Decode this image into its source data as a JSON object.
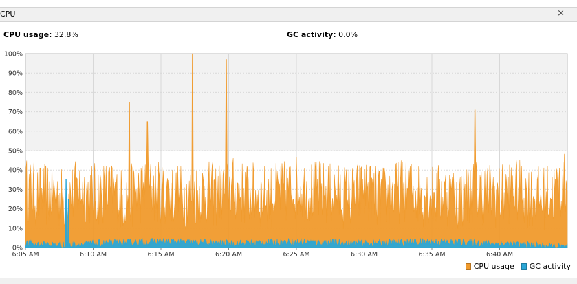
{
  "window": {
    "title": "CPU",
    "close_glyph": "×"
  },
  "status": {
    "cpu_label": "CPU usage:",
    "cpu_value": "32.8%",
    "gc_label": "GC activity:",
    "gc_value": "0.0%"
  },
  "chart_data": {
    "type": "area",
    "title": "",
    "xlabel": "",
    "ylabel": "",
    "ylim": [
      0,
      100
    ],
    "y_ticks": [
      "0%",
      "10%",
      "20%",
      "30%",
      "40%",
      "50%",
      "60%",
      "70%",
      "80%",
      "90%",
      "100%"
    ],
    "x_ticks": [
      "6:05 AM",
      "6:10 AM",
      "6:15 AM",
      "6:20 AM",
      "6:25 AM",
      "6:30 AM",
      "6:35 AM",
      "6:40 AM"
    ],
    "x_range_minutes": [
      "6:05 AM",
      "6:45 AM"
    ],
    "grid": true,
    "legend_position": "bottom-right",
    "series": [
      {
        "name": "CPU usage",
        "color": "#f09a2c",
        "points": [
          [
            "6:05 AM",
            30
          ],
          [
            "6:06 AM",
            26
          ],
          [
            "6:07 AM",
            28
          ],
          [
            "6:08 AM",
            24
          ],
          [
            "6:09 AM",
            30
          ],
          [
            "6:10 AM",
            27
          ],
          [
            "6:11 AM",
            29
          ],
          [
            "6:12 AM",
            25
          ],
          [
            "6:13 AM",
            27
          ],
          [
            "6:14 AM",
            30
          ],
          [
            "6:15 AM",
            28
          ],
          [
            "6:16 AM",
            27
          ],
          [
            "6:17 AM",
            26
          ],
          [
            "6:18 AM",
            29
          ],
          [
            "6:19 AM",
            27
          ],
          [
            "6:20 AM",
            31
          ],
          [
            "6:21 AM",
            28
          ],
          [
            "6:22 AM",
            27
          ],
          [
            "6:23 AM",
            26
          ],
          [
            "6:24 AM",
            28
          ],
          [
            "6:25 AM",
            31
          ],
          [
            "6:26 AM",
            29
          ],
          [
            "6:27 AM",
            28
          ],
          [
            "6:28 AM",
            27
          ],
          [
            "6:29 AM",
            26
          ],
          [
            "6:30 AM",
            29
          ],
          [
            "6:31 AM",
            25
          ],
          [
            "6:32 AM",
            27
          ],
          [
            "6:33 AM",
            30
          ],
          [
            "6:34 AM",
            28
          ],
          [
            "6:35 AM",
            26
          ],
          [
            "6:36 AM",
            27
          ],
          [
            "6:37 AM",
            25
          ],
          [
            "6:38 AM",
            29
          ],
          [
            "6:39 AM",
            28
          ],
          [
            "6:40 AM",
            26
          ],
          [
            "6:41 AM",
            30
          ],
          [
            "6:42 AM",
            27
          ],
          [
            "6:43 AM",
            25
          ],
          [
            "6:44 AM",
            28
          ],
          [
            "6:45 AM",
            33
          ]
        ],
        "peaks": [
          [
            "6:12:40 AM",
            75
          ],
          [
            "6:14:00 AM",
            65
          ],
          [
            "6:17:20 AM",
            100
          ],
          [
            "6:19:50 AM",
            97
          ],
          [
            "6:38:10 AM",
            71
          ]
        ]
      },
      {
        "name": "GC activity",
        "color": "#2aa6d6",
        "points": [
          [
            "6:05 AM",
            2
          ],
          [
            "6:08 AM",
            1
          ],
          [
            "6:10 AM",
            2
          ],
          [
            "6:15 AM",
            3
          ],
          [
            "6:20 AM",
            2
          ],
          [
            "6:25 AM",
            3
          ],
          [
            "6:30 AM",
            2
          ],
          [
            "6:35 AM",
            3
          ],
          [
            "6:40 AM",
            2
          ],
          [
            "6:45 AM",
            0
          ]
        ],
        "peaks": [
          [
            "6:08:00 AM",
            35
          ],
          [
            "6:08:10 AM",
            25
          ]
        ]
      }
    ]
  }
}
